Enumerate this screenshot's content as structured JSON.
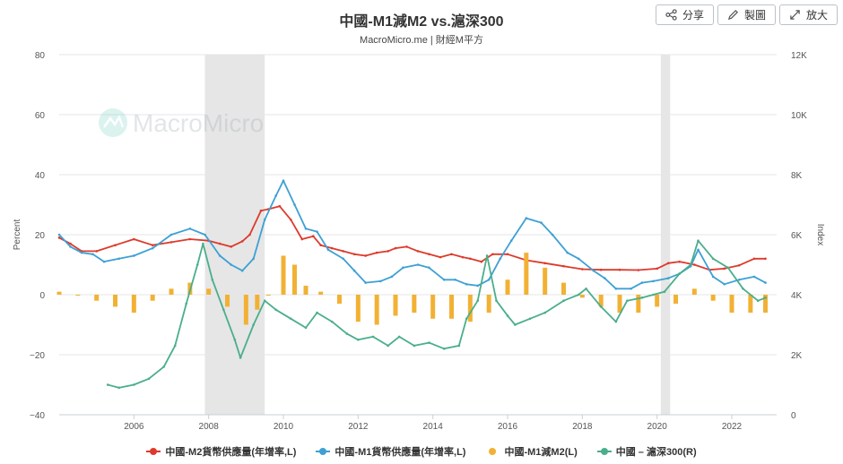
{
  "header": {
    "title": "中國-M1減M2 vs.滬深300",
    "subtitle": "MacroMicro.me | 財經M平方"
  },
  "toolbar": {
    "share_label": "分享",
    "draw_label": "製圖",
    "zoom_label": "放大"
  },
  "watermark": "MacroMicro",
  "colors": {
    "m2": "#dd3a2c",
    "m1": "#3ea0d4",
    "spread": "#f2b134",
    "csi300": "#4aae8a",
    "recession": "#e6e6e6"
  },
  "chart_data": {
    "type": "line",
    "title": "中國-M1減M2 vs.滬深300",
    "ylabel_left": "Percent",
    "ylabel_right": "Index",
    "ylim_left": [
      -40,
      80
    ],
    "ylim_right": [
      0,
      12000
    ],
    "xlim": [
      2004.0,
      2023.2
    ],
    "left_ticks": [
      "80",
      "60",
      "40",
      "20",
      "0",
      "−20",
      "−40"
    ],
    "right_ticks": [
      "12K",
      "10K",
      "8K",
      "6K",
      "4K",
      "2K",
      "0"
    ],
    "x_ticks": [
      "2006",
      "2008",
      "2010",
      "2012",
      "2014",
      "2016",
      "2018",
      "2020",
      "2022"
    ],
    "shaded_periods": [
      [
        2007.9,
        2009.5
      ],
      [
        2020.1,
        2020.35
      ]
    ],
    "grid": true,
    "legend": "bottom",
    "series": [
      {
        "name": "中國-M2貨幣供應量(年增率,L)",
        "axis": "left",
        "style": "line",
        "color": "#dd3a2c",
        "x": [
          2004.0,
          2004.3,
          2004.6,
          2005.0,
          2005.5,
          2006.0,
          2006.5,
          2007.0,
          2007.5,
          2008.0,
          2008.3,
          2008.6,
          2008.9,
          2009.1,
          2009.4,
          2009.6,
          2009.9,
          2010.2,
          2010.5,
          2010.8,
          2011.0,
          2011.3,
          2011.6,
          2011.9,
          2012.2,
          2012.5,
          2012.8,
          2013.0,
          2013.3,
          2013.6,
          2013.9,
          2014.2,
          2014.5,
          2014.8,
          2015.0,
          2015.3,
          2015.6,
          2016.0,
          2016.5,
          2017.0,
          2017.5,
          2018.0,
          2018.5,
          2019.0,
          2019.5,
          2020.0,
          2020.3,
          2020.6,
          2021.0,
          2021.4,
          2021.8,
          2022.2,
          2022.6,
          2022.9
        ],
        "values": [
          19,
          17,
          14.5,
          14.5,
          16.5,
          18.5,
          16.5,
          17.5,
          18.5,
          18,
          17,
          16,
          17.8,
          20,
          28,
          28.5,
          29.5,
          25,
          18.5,
          19.5,
          16.5,
          15.5,
          14.5,
          13.5,
          13,
          14,
          14.5,
          15.5,
          16,
          14.5,
          13.5,
          12.5,
          13.5,
          12.5,
          12,
          11,
          13.5,
          13.5,
          11.5,
          10.5,
          9.5,
          8.5,
          8.3,
          8.3,
          8.2,
          8.7,
          10.5,
          11,
          10,
          8.3,
          8.7,
          9.8,
          12,
          12
        ],
        "source": "estimated"
      },
      {
        "name": "中國-M1貨幣供應量(年增率,L)",
        "axis": "left",
        "style": "line",
        "color": "#3ea0d4",
        "x": [
          2004.0,
          2004.3,
          2004.6,
          2004.9,
          2005.2,
          2005.6,
          2006.0,
          2006.5,
          2007.0,
          2007.5,
          2007.9,
          2008.3,
          2008.6,
          2008.9,
          2009.2,
          2009.5,
          2009.8,
          2010.0,
          2010.3,
          2010.6,
          2010.9,
          2011.2,
          2011.6,
          2011.9,
          2012.2,
          2012.6,
          2012.9,
          2013.2,
          2013.6,
          2013.9,
          2014.3,
          2014.6,
          2014.9,
          2015.2,
          2015.5,
          2015.8,
          2016.1,
          2016.5,
          2016.9,
          2017.2,
          2017.6,
          2017.9,
          2018.3,
          2018.6,
          2018.9,
          2019.3,
          2019.6,
          2019.9,
          2020.3,
          2020.6,
          2020.9,
          2021.1,
          2021.5,
          2021.8,
          2022.2,
          2022.6,
          2022.9
        ],
        "values": [
          20,
          16,
          14,
          13.5,
          11,
          12,
          13,
          15.5,
          20,
          22,
          20,
          13,
          10,
          8,
          12,
          25,
          33,
          38,
          30,
          22,
          21,
          15,
          12,
          8,
          4,
          4.5,
          6,
          9,
          10,
          9,
          5,
          5,
          3.5,
          3,
          5,
          12,
          18,
          25.5,
          24,
          20,
          14,
          12,
          8,
          5.5,
          2,
          2,
          4,
          4.5,
          5.5,
          7,
          9.5,
          15,
          6,
          3.5,
          5,
          6,
          4
        ],
        "source": "estimated"
      },
      {
        "name": "中國-M1減M2(L)",
        "axis": "left",
        "style": "bar",
        "color": "#f2b134",
        "x": [
          2004.0,
          2004.5,
          2005.0,
          2005.5,
          2006.0,
          2006.5,
          2007.0,
          2007.5,
          2008.0,
          2008.5,
          2009.0,
          2009.3,
          2009.6,
          2010.0,
          2010.3,
          2010.6,
          2011.0,
          2011.5,
          2012.0,
          2012.5,
          2013.0,
          2013.5,
          2014.0,
          2014.5,
          2015.0,
          2015.5,
          2016.0,
          2016.5,
          2017.0,
          2017.5,
          2018.0,
          2018.5,
          2019.0,
          2019.5,
          2020.0,
          2020.5,
          2021.0,
          2021.5,
          2022.0,
          2022.5,
          2022.9
        ],
        "values": [
          1,
          0,
          -2,
          -4,
          -6,
          -2,
          2,
          4,
          2,
          -4,
          -10,
          -5,
          0,
          13,
          10,
          3,
          1,
          -3,
          -9,
          -10,
          -7,
          -6,
          -8,
          -8,
          -9,
          -6,
          5,
          14,
          9,
          4,
          -1,
          -4,
          -6,
          -6,
          -4,
          -3,
          2,
          -2,
          -6,
          -6,
          -6
        ],
        "source": "estimated"
      },
      {
        "name": "中國 – 滬深300(R)",
        "axis": "right",
        "style": "line",
        "color": "#4aae8a",
        "x": [
          2005.3,
          2005.6,
          2006.0,
          2006.4,
          2006.8,
          2007.1,
          2007.4,
          2007.7,
          2007.85,
          2008.1,
          2008.4,
          2008.7,
          2008.85,
          2009.2,
          2009.5,
          2009.8,
          2010.2,
          2010.6,
          2010.9,
          2011.3,
          2011.7,
          2012.0,
          2012.4,
          2012.8,
          2013.1,
          2013.5,
          2013.9,
          2014.3,
          2014.7,
          2014.9,
          2015.2,
          2015.45,
          2015.7,
          2016.0,
          2016.2,
          2016.6,
          2017.0,
          2017.5,
          2017.9,
          2018.1,
          2018.5,
          2018.9,
          2019.2,
          2019.6,
          2019.9,
          2020.2,
          2020.6,
          2020.9,
          2021.1,
          2021.5,
          2021.9,
          2022.3,
          2022.7,
          2022.9
        ],
        "values": [
          1000,
          900,
          1000,
          1200,
          1600,
          2300,
          3700,
          5000,
          5700,
          4500,
          3500,
          2500,
          1900,
          3000,
          3800,
          3500,
          3200,
          2900,
          3400,
          3100,
          2700,
          2500,
          2600,
          2300,
          2600,
          2300,
          2400,
          2200,
          2300,
          3200,
          3800,
          5300,
          3800,
          3300,
          3000,
          3200,
          3400,
          3800,
          4000,
          4200,
          3600,
          3100,
          3800,
          3900,
          4000,
          4100,
          4700,
          5000,
          5800,
          5200,
          4900,
          4200,
          3800,
          3900
        ],
        "source": "estimated"
      }
    ]
  }
}
